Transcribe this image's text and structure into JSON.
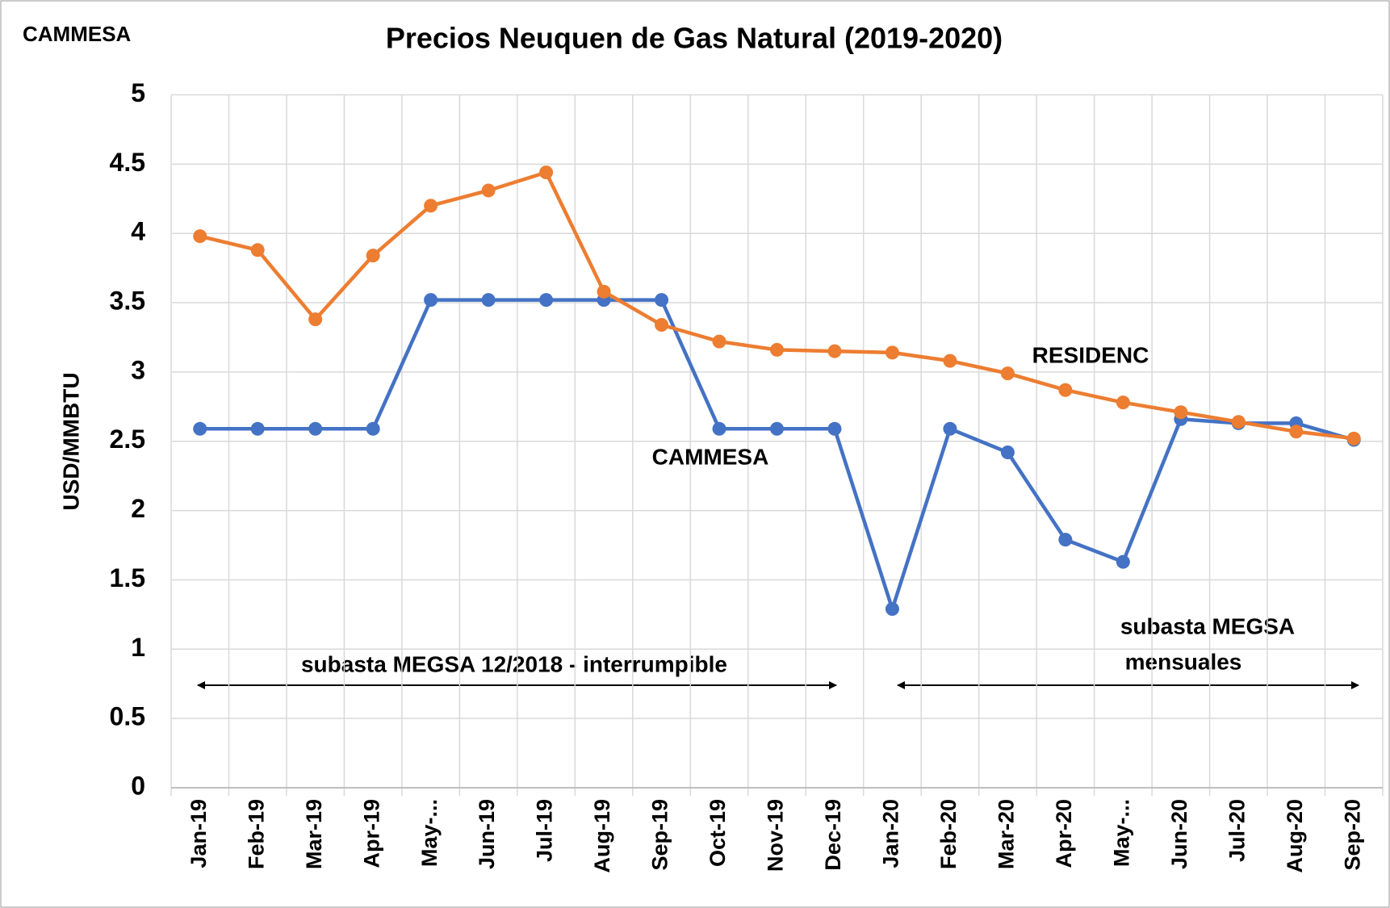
{
  "chart_data": {
    "type": "line",
    "title": "Precios Neuquen de Gas Natural (2019-2020)",
    "y_label": "USD/MMBTU",
    "categories": [
      "Jan-19",
      "Feb-19",
      "Mar-19",
      "Apr-19",
      "May-...",
      "Jun-19",
      "Jul-19",
      "Aug-19",
      "Sep-19",
      "Oct-19",
      "Nov-19",
      "Dec-19",
      "Jan-20",
      "Feb-20",
      "Mar-20",
      "Apr-20",
      "May-...",
      "Jun-20",
      "Jul-20",
      "Aug-20",
      "Sep-20"
    ],
    "series": [
      {
        "name": "CAMMESA",
        "color": "#4472c4",
        "values": [
          2.59,
          2.59,
          2.59,
          2.59,
          3.52,
          3.52,
          3.52,
          3.52,
          3.52,
          2.59,
          2.59,
          2.59,
          1.29,
          2.59,
          2.42,
          1.79,
          1.63,
          2.66,
          2.63,
          2.63,
          2.51
        ]
      },
      {
        "name": "RESIDENC",
        "color": "#ed7d31",
        "values": [
          3.98,
          3.88,
          3.38,
          3.84,
          4.2,
          4.31,
          4.44,
          3.58,
          3.34,
          3.22,
          3.16,
          3.15,
          3.14,
          3.08,
          2.99,
          2.87,
          2.78,
          2.71,
          2.64,
          2.57,
          2.52
        ]
      }
    ],
    "ylim": [
      0,
      5
    ],
    "yticks": [
      0,
      0.5,
      1,
      1.5,
      2,
      2.5,
      3,
      3.5,
      4,
      4.5,
      5
    ],
    "grid": true,
    "annotations": [
      {
        "text": [
          "CAMMESA"
        ]
      },
      {
        "text": [
          "subasta MEGSA 12/2018 - interrumpible"
        ]
      },
      {
        "text": [
          "subasta MEGSA",
          "mensuales"
        ]
      }
    ]
  }
}
